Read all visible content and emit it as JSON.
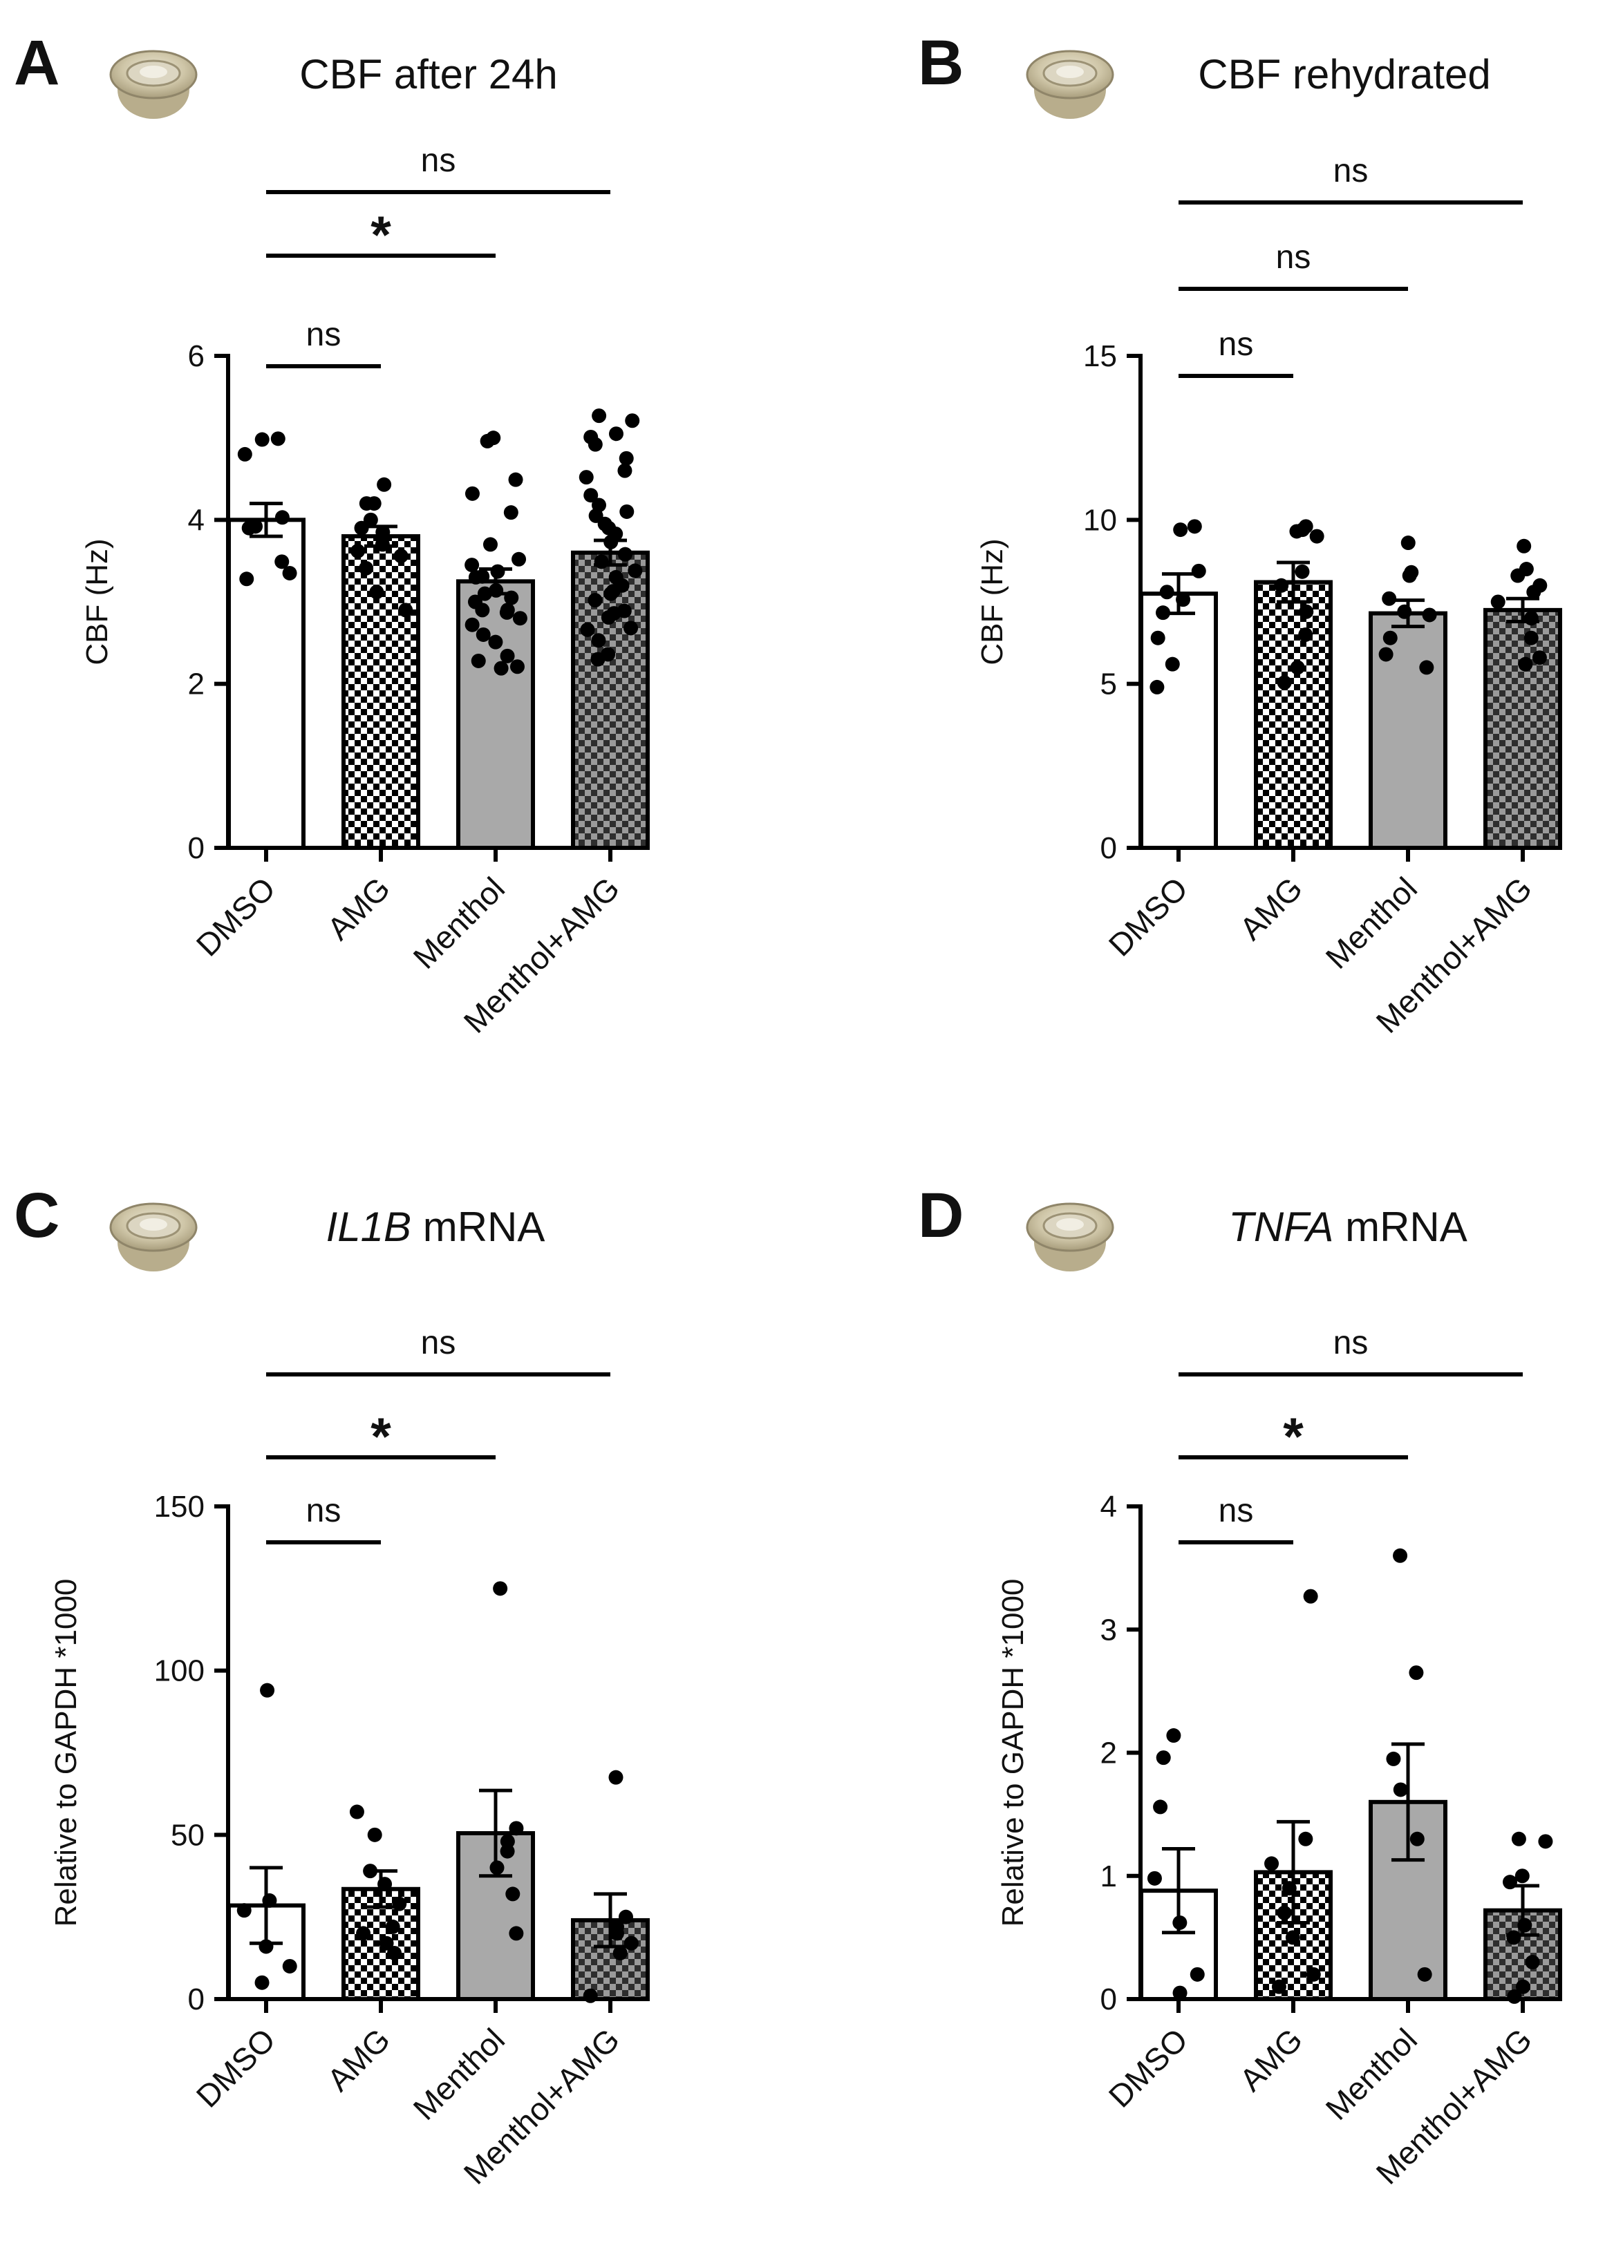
{
  "figure": {
    "panels": [
      {
        "letter": "A",
        "title_plain": "CBF after 24h",
        "title_italic": "",
        "icon": "transwell-insert-icon"
      },
      {
        "letter": "B",
        "title_plain": "CBF rehydrated",
        "title_italic": "",
        "icon": "transwell-insert-icon"
      },
      {
        "letter": "C",
        "title_plain": " mRNA",
        "title_italic": "IL1B",
        "icon": "transwell-insert-icon"
      },
      {
        "letter": "D",
        "title_plain": " mRNA",
        "title_italic": "TNFA",
        "icon": "transwell-insert-icon"
      }
    ],
    "bar_styles": [
      {
        "category": "DMSO",
        "fill": "#ffffff",
        "pattern": "none"
      },
      {
        "category": "AMG",
        "fill": "#ffffff",
        "pattern": "checker",
        "pattern_color": "#000000"
      },
      {
        "category": "Menthol",
        "fill": "#a9a9a9",
        "pattern": "none"
      },
      {
        "category": "Menthol+AMG",
        "fill": "#9a9a9a",
        "pattern": "checker",
        "pattern_color": "#2e2e2e"
      }
    ],
    "colors": {
      "ink": "#000000",
      "grey": "#a9a9a9"
    }
  },
  "chart_data": [
    {
      "type": "bar",
      "title": "CBF after 24h",
      "ylabel": "CBF (Hz)",
      "categories": [
        "DMSO",
        "AMG",
        "Menthol",
        "Menthol+AMG"
      ],
      "ylim": [
        0,
        6
      ],
      "yticks": [
        0,
        2,
        4,
        6
      ],
      "values": [
        4.0,
        3.8,
        3.25,
        3.6
      ],
      "errors": [
        0.2,
        0.12,
        0.15,
        0.15
      ],
      "points": [
        [
          4.99,
          4.8,
          4.98,
          4.03,
          3.9,
          3.49,
          3.28,
          3.35,
          3.92
        ],
        [
          4.43,
          4.2,
          4.0,
          3.85,
          3.9,
          3.62,
          3.56,
          3.41,
          3.12,
          2.9,
          4.2,
          3.7
        ],
        [
          5.0,
          4.96,
          4.49,
          4.32,
          4.09,
          3.45,
          3.37,
          3.31,
          3.14,
          3.05,
          2.87,
          2.8,
          2.51,
          2.34,
          2.28,
          2.19,
          2.21,
          3.1,
          2.9,
          2.72,
          3.3,
          3.7,
          3.52,
          3.0,
          2.6,
          2.9
        ],
        [
          5.27,
          5.21,
          5.05,
          5.01,
          4.92,
          4.75,
          4.6,
          4.52,
          4.3,
          4.18,
          4.1,
          4.05,
          3.95,
          3.83,
          3.73,
          3.49,
          3.38,
          3.13,
          3.02,
          2.89,
          2.81,
          2.66,
          2.53,
          2.36,
          2.3,
          2.68,
          3.3,
          3.1,
          3.58,
          3.9,
          2.86,
          3.2
        ]
      ],
      "comparisons": [
        {
          "from": "DMSO",
          "to": "AMG",
          "label": "ns"
        },
        {
          "from": "DMSO",
          "to": "Menthol",
          "label": "*"
        },
        {
          "from": "DMSO",
          "to": "Menthol+AMG",
          "label": "ns"
        }
      ]
    },
    {
      "type": "bar",
      "title": "CBF rehydrated",
      "ylabel": "CBF (Hz)",
      "categories": [
        "DMSO",
        "AMG",
        "Menthol",
        "Menthol+AMG"
      ],
      "ylim": [
        0,
        15
      ],
      "yticks": [
        0,
        5,
        10,
        15
      ],
      "values": [
        7.75,
        8.1,
        7.15,
        7.25
      ],
      "errors": [
        0.6,
        0.6,
        0.4,
        0.35
      ],
      "points": [
        [
          9.8,
          9.7,
          8.44,
          7.8,
          7.17,
          6.4,
          5.6,
          4.9,
          7.57
        ],
        [
          9.8,
          9.65,
          9.7,
          9.5,
          8.42,
          8.0,
          6.5,
          5.5,
          5.04,
          7.2
        ],
        [
          9.3,
          8.4,
          7.6,
          7.2,
          7.1,
          6.4,
          5.9,
          5.5,
          8.3
        ],
        [
          9.2,
          8.5,
          8.0,
          7.5,
          7.0,
          6.4,
          5.8,
          5.6,
          8.3,
          7.8
        ]
      ],
      "comparisons": [
        {
          "from": "DMSO",
          "to": "AMG",
          "label": "ns"
        },
        {
          "from": "DMSO",
          "to": "Menthol",
          "label": "ns"
        },
        {
          "from": "DMSO",
          "to": "Menthol+AMG",
          "label": "ns"
        }
      ]
    },
    {
      "type": "bar",
      "title": "IL1B mRNA",
      "ylabel": "Relative to GAPDH *1000",
      "categories": [
        "DMSO",
        "AMG",
        "Menthol",
        "Menthol+AMG"
      ],
      "ylim": [
        0,
        150
      ],
      "yticks": [
        0,
        50,
        100,
        150
      ],
      "values": [
        28.5,
        33.5,
        50.5,
        24.0
      ],
      "errors": [
        11.5,
        5.5,
        13.0,
        8.0
      ],
      "points": [
        [
          94.0,
          30.0,
          27.0,
          16.0,
          10.0,
          5.0
        ],
        [
          57.0,
          50.0,
          39.0,
          35.0,
          29.0,
          22.0,
          20.0,
          17.0,
          14.0
        ],
        [
          125.0,
          52.0,
          48.0,
          45.0,
          40.0,
          32.0,
          20.0
        ],
        [
          67.5,
          25.0,
          22.0,
          20.0,
          17.0,
          14.0,
          1.0
        ]
      ],
      "comparisons": [
        {
          "from": "DMSO",
          "to": "AMG",
          "label": "ns"
        },
        {
          "from": "DMSO",
          "to": "Menthol",
          "label": "*"
        },
        {
          "from": "DMSO",
          "to": "Menthol+AMG",
          "label": "ns"
        }
      ]
    },
    {
      "type": "bar",
      "title": "TNFA mRNA",
      "ylabel": "Relative to GAPDH *1000",
      "categories": [
        "DMSO",
        "AMG",
        "Menthol",
        "Menthol+AMG"
      ],
      "ylim": [
        0,
        4
      ],
      "yticks": [
        0,
        1,
        2,
        3,
        4
      ],
      "values": [
        0.88,
        1.03,
        1.6,
        0.72
      ],
      "errors": [
        0.34,
        0.41,
        0.47,
        0.2
      ],
      "points": [
        [
          2.14,
          1.96,
          1.56,
          0.98,
          0.62,
          0.2,
          0.05
        ],
        [
          3.27,
          1.3,
          1.1,
          0.9,
          0.7,
          0.5,
          0.2,
          0.1
        ],
        [
          3.6,
          2.65,
          1.95,
          1.7,
          1.3,
          0.2
        ],
        [
          1.3,
          1.28,
          1.0,
          0.95,
          0.6,
          0.5,
          0.3,
          0.1,
          0.02
        ]
      ],
      "comparisons": [
        {
          "from": "DMSO",
          "to": "AMG",
          "label": "ns"
        },
        {
          "from": "DMSO",
          "to": "Menthol",
          "label": "*"
        },
        {
          "from": "DMSO",
          "to": "Menthol+AMG",
          "label": "ns"
        }
      ]
    }
  ]
}
